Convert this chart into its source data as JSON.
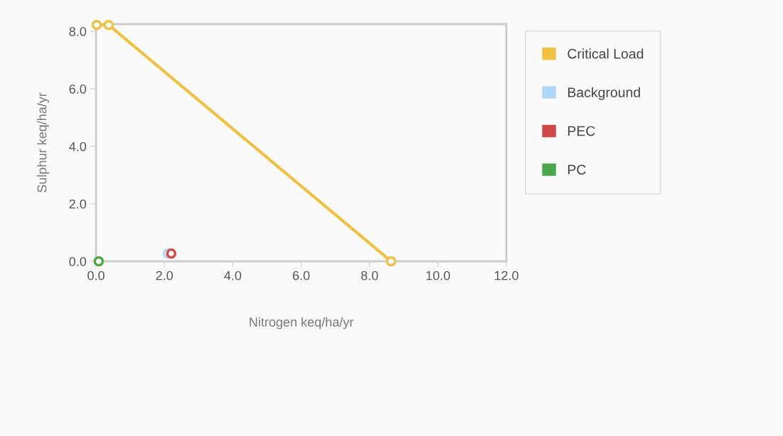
{
  "chart_data": {
    "type": "scatter",
    "xlabel": "Nitrogen keq/ha/yr",
    "ylabel": "Sulphur keq/ha/yr",
    "xlim": [
      0,
      12
    ],
    "xticks": [
      {
        "value": 0,
        "label": "0.0"
      },
      {
        "value": 2,
        "label": "2.0"
      },
      {
        "value": 4,
        "label": "4.0"
      },
      {
        "value": 6,
        "label": "6.0"
      },
      {
        "value": 8,
        "label": "8.0"
      },
      {
        "value": 10,
        "label": "10.0"
      },
      {
        "value": 12,
        "label": "12.0"
      }
    ],
    "ylim": [
      0,
      8.25
    ],
    "yticks": [
      {
        "value": 0,
        "label": "0.0"
      },
      {
        "value": 2,
        "label": "2.0"
      },
      {
        "value": 4,
        "label": "4.0"
      },
      {
        "value": 6,
        "label": "6.0"
      },
      {
        "value": 8,
        "label": "8.0"
      }
    ],
    "grid": false,
    "legend": "right",
    "marker": "circle",
    "series": [
      {
        "name": "Critical Load",
        "type": "line",
        "color": "#f0c040",
        "x": [
          0.02,
          0.37,
          8.63
        ],
        "values": [
          8.22,
          8.22,
          0
        ]
      },
      {
        "name": "Background",
        "color": "#aed6f7",
        "x": [
          2.1
        ],
        "values": [
          0.27
        ]
      },
      {
        "name": "PEC",
        "color": "#d04848",
        "x": [
          2.2
        ],
        "values": [
          0.27
        ]
      },
      {
        "name": "PC",
        "color": "#4aa84a",
        "x": [
          0.08
        ],
        "values": [
          0
        ]
      }
    ]
  }
}
